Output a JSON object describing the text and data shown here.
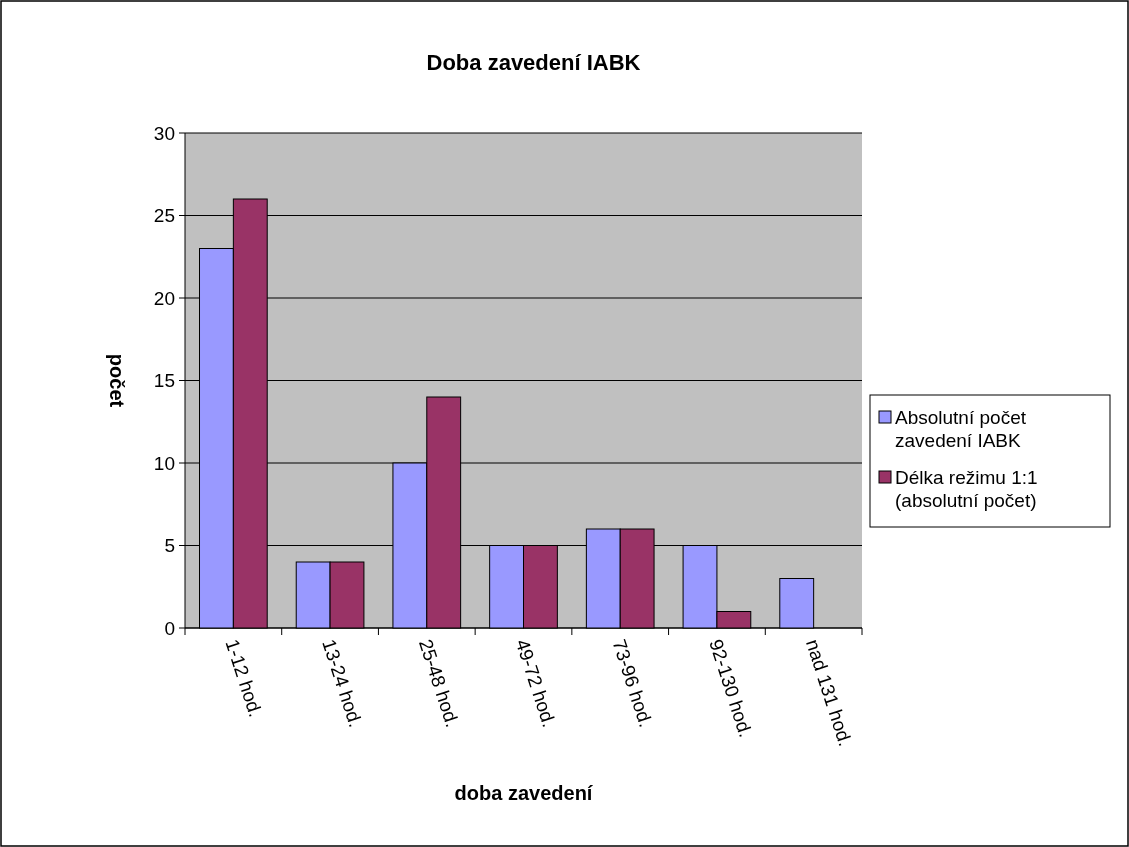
{
  "chart_data": {
    "type": "bar",
    "title": "Doba zavedení IABK",
    "xlabel": "doba zavedení",
    "ylabel": "počet",
    "categories": [
      "1-12 hod.",
      "13-24 hod.",
      "25-48 hod.",
      "49-72 hod.",
      "73-96 hod.",
      "92-130 hod.",
      "nad 131 hod."
    ],
    "series": [
      {
        "name": "Absolutní počet zavedení IABK",
        "color": "#9999ff",
        "values": [
          23,
          4,
          10,
          5,
          6,
          5,
          3
        ]
      },
      {
        "name": "Délka režimu 1:1 (absolutní počet)",
        "color": "#993366",
        "values": [
          26,
          4,
          14,
          5,
          6,
          1,
          0
        ]
      }
    ],
    "ylim": [
      0,
      30
    ],
    "yticks": [
      0,
      5,
      10,
      15,
      20,
      25,
      30
    ],
    "grid": "y",
    "legend": "right"
  }
}
